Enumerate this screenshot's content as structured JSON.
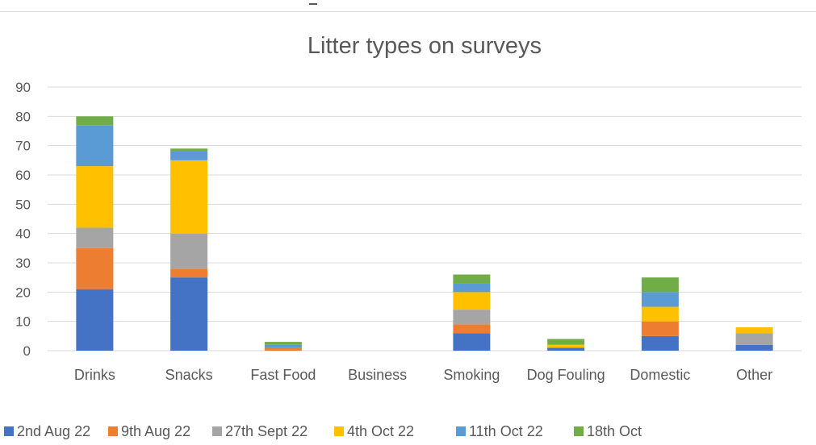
{
  "chart_data": {
    "type": "bar",
    "stacked": true,
    "title": "Litter types on surveys",
    "xlabel": "",
    "ylabel": "",
    "ylim": [
      0,
      90
    ],
    "yticks": [
      0,
      10,
      20,
      30,
      40,
      50,
      60,
      70,
      80,
      90
    ],
    "grid": true,
    "legend_position": "bottom",
    "categories": [
      "Drinks",
      "Snacks",
      "Fast Food",
      "Business",
      "Smoking",
      "Dog Fouling",
      "Domestic",
      "Other"
    ],
    "series": [
      {
        "name": "2nd Aug 22",
        "color": "#4472C4",
        "values": [
          21,
          25,
          0,
          0,
          6,
          1,
          5,
          2
        ]
      },
      {
        "name": "9th Aug 22",
        "color": "#ED7D31",
        "values": [
          14,
          3,
          1,
          0,
          3,
          0,
          5,
          0
        ]
      },
      {
        "name": "27th Sept 22",
        "color": "#A5A5A5",
        "values": [
          7,
          12,
          0,
          0,
          5,
          0,
          0,
          4
        ]
      },
      {
        "name": "4th Oct 22",
        "color": "#FFC000",
        "values": [
          21,
          25,
          0,
          0,
          6,
          1,
          5,
          2
        ]
      },
      {
        "name": "11th Oct 22",
        "color": "#5B9BD5",
        "values": [
          14,
          3,
          1,
          0,
          3,
          0,
          5,
          0
        ]
      },
      {
        "name": "18th Oct",
        "color": "#70AD47",
        "values": [
          3,
          1,
          1,
          0,
          3,
          2,
          5,
          0
        ]
      }
    ]
  }
}
